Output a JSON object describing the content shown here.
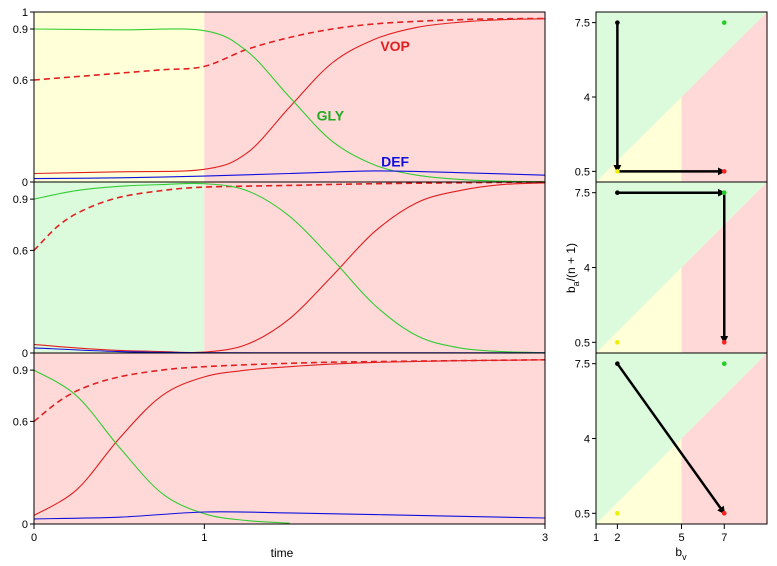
{
  "chart_data": {
    "type": "line",
    "xlabel": "time",
    "x_ticks": [
      "0",
      "1",
      "3"
    ],
    "y_ticks_left": [
      "0",
      "0.6",
      "0.9",
      "1"
    ],
    "xlim": [
      0,
      3
    ],
    "ylim": [
      0,
      1
    ],
    "series_labels": [
      {
        "name": "VOP",
        "color": "#e02020",
        "x": 2.12,
        "y": 0.8
      },
      {
        "name": "GLY",
        "color": "#22aa22",
        "x": 1.74,
        "y": 0.39
      },
      {
        "name": "DEF",
        "color": "#1010dd",
        "x": 2.12,
        "y": 0.12
      }
    ],
    "colors": {
      "yellow_region": "#ffffd8",
      "green_region": "#dcfadc",
      "red_region": "#ffd8d8",
      "vop": "#e02020",
      "gly": "#33cc33",
      "def": "#1010dd"
    },
    "panels": [
      {
        "regions": [
          {
            "from": 0,
            "to": 1,
            "color": "yellow"
          },
          {
            "from": 1,
            "to": 3,
            "color": "red"
          }
        ],
        "series": [
          {
            "name": "VOP",
            "color": "#e02020",
            "style": "solid",
            "x": [
              0,
              0.5,
              1,
              1.25,
              1.5,
              1.75,
              2,
              2.25,
              2.5,
              2.75,
              3
            ],
            "y": [
              0.05,
              0.06,
              0.075,
              0.17,
              0.44,
              0.7,
              0.84,
              0.91,
              0.94,
              0.955,
              0.96
            ]
          },
          {
            "name": "VOP_mean",
            "color": "#e02020",
            "style": "dashed",
            "x": [
              0,
              0.25,
              0.5,
              0.75,
              1,
              1.25,
              1.5,
              1.75,
              2,
              2.25,
              2.5,
              2.75,
              3
            ],
            "y": [
              0.6,
              0.62,
              0.64,
              0.66,
              0.68,
              0.78,
              0.85,
              0.9,
              0.93,
              0.945,
              0.955,
              0.96,
              0.962
            ]
          },
          {
            "name": "GLY",
            "color": "#33cc33",
            "style": "solid",
            "x": [
              0,
              0.5,
              1,
              1.25,
              1.5,
              1.75,
              2,
              2.25,
              2.5,
              2.75,
              3
            ],
            "y": [
              0.9,
              0.895,
              0.89,
              0.77,
              0.5,
              0.24,
              0.1,
              0.04,
              0.015,
              0.005,
              0.002
            ]
          },
          {
            "name": "DEF",
            "color": "#1010dd",
            "style": "solid",
            "x": [
              0,
              0.5,
              1,
              1.5,
              2,
              2.5,
              3
            ],
            "y": [
              0.02,
              0.025,
              0.035,
              0.05,
              0.065,
              0.055,
              0.04
            ]
          }
        ]
      },
      {
        "regions": [
          {
            "from": 0,
            "to": 1,
            "color": "green"
          },
          {
            "from": 1,
            "to": 3,
            "color": "red"
          }
        ],
        "series": [
          {
            "name": "VOP",
            "color": "#e02020",
            "style": "solid",
            "x": [
              0,
              0.25,
              0.5,
              0.75,
              1,
              1.25,
              1.5,
              1.75,
              2,
              2.25,
              2.5,
              2.75,
              3
            ],
            "y": [
              0.05,
              0.03,
              0.015,
              0.008,
              0.005,
              0.05,
              0.2,
              0.45,
              0.71,
              0.88,
              0.95,
              0.985,
              0.995
            ]
          },
          {
            "name": "VOP_mean",
            "color": "#e02020",
            "style": "dashed",
            "x": [
              0,
              0.15,
              0.3,
              0.5,
              0.75,
              1,
              1.5,
              2,
              3
            ],
            "y": [
              0.6,
              0.75,
              0.84,
              0.91,
              0.95,
              0.97,
              0.98,
              0.99,
              1.0
            ]
          },
          {
            "name": "GLY",
            "color": "#33cc33",
            "style": "solid",
            "x": [
              0,
              0.25,
              0.5,
              0.75,
              1,
              1.25,
              1.5,
              1.75,
              2,
              2.25,
              2.5,
              2.75,
              3
            ],
            "y": [
              0.9,
              0.95,
              0.975,
              0.985,
              0.99,
              0.95,
              0.8,
              0.55,
              0.28,
              0.1,
              0.03,
              0.008,
              0.002
            ]
          },
          {
            "name": "DEF",
            "color": "#1010dd",
            "style": "solid",
            "x": [
              0,
              0.5,
              1,
              2,
              3
            ],
            "y": [
              0.03,
              0.008,
              0.002,
              0.001,
              0.001
            ]
          }
        ]
      },
      {
        "regions": [
          {
            "from": 0,
            "to": 3,
            "color": "red"
          }
        ],
        "series": [
          {
            "name": "VOP",
            "color": "#e02020",
            "style": "solid",
            "x": [
              0,
              0.25,
              0.5,
              0.75,
              1,
              1.25,
              1.5,
              1.75,
              2,
              2.5,
              3
            ],
            "y": [
              0.05,
              0.2,
              0.5,
              0.75,
              0.86,
              0.9,
              0.92,
              0.935,
              0.945,
              0.955,
              0.96
            ]
          },
          {
            "name": "VOP_mean",
            "color": "#e02020",
            "style": "dashed",
            "x": [
              0,
              0.15,
              0.3,
              0.5,
              0.75,
              1,
              1.5,
              2,
              3
            ],
            "y": [
              0.6,
              0.72,
              0.8,
              0.86,
              0.9,
              0.92,
              0.94,
              0.95,
              0.96
            ]
          },
          {
            "name": "GLY",
            "color": "#33cc33",
            "style": "solid",
            "x": [
              0,
              0.25,
              0.5,
              0.75,
              1,
              1.25,
              1.5
            ],
            "y": [
              0.9,
              0.75,
              0.45,
              0.18,
              0.06,
              0.02,
              0.005
            ]
          },
          {
            "name": "DEF",
            "color": "#1010dd",
            "style": "solid",
            "x": [
              0,
              0.5,
              1,
              1.5,
              2,
              2.5,
              3
            ],
            "y": [
              0.03,
              0.04,
              0.07,
              0.065,
              0.055,
              0.045,
              0.035
            ]
          }
        ]
      }
    ],
    "phase_panels": {
      "xlabel": "b",
      "xlabel_sub": "v",
      "ylabel": "b",
      "ylabel_sub": "a",
      "ylabel_suffix": "/(n + 1)",
      "x_ticks": [
        "1",
        "2",
        "5",
        "7"
      ],
      "x_tick_values": [
        1,
        2,
        5,
        7
      ],
      "y_ticks": [
        "0.5",
        "4",
        "7.5"
      ],
      "y_tick_values": [
        0.5,
        4,
        7.5
      ],
      "xlim": [
        1,
        9
      ],
      "ylim": [
        0,
        8
      ],
      "panels": [
        {
          "points": [
            {
              "x": 2,
              "y": 7.5,
              "color": "#000000"
            },
            {
              "x": 7,
              "y": 7.5,
              "color": "#22cc22"
            },
            {
              "x": 2,
              "y": 0.5,
              "color": "#eeee00"
            },
            {
              "x": 7,
              "y": 0.5,
              "color": "#ff2020"
            }
          ],
          "arrows": [
            {
              "from": [
                2,
                7.5
              ],
              "to": [
                2,
                0.5
              ]
            },
            {
              "from": [
                2,
                0.5
              ],
              "to": [
                7,
                0.5
              ]
            }
          ]
        },
        {
          "points": [
            {
              "x": 2,
              "y": 7.5,
              "color": "#000000"
            },
            {
              "x": 7,
              "y": 7.5,
              "color": "#22cc22"
            },
            {
              "x": 2,
              "y": 0.5,
              "color": "#eeee00"
            },
            {
              "x": 7,
              "y": 0.5,
              "color": "#ff2020"
            }
          ],
          "arrows": [
            {
              "from": [
                2,
                7.5
              ],
              "to": [
                7,
                7.5
              ]
            },
            {
              "from": [
                7,
                7.5
              ],
              "to": [
                7,
                0.5
              ]
            }
          ]
        },
        {
          "points": [
            {
              "x": 2,
              "y": 7.5,
              "color": "#000000"
            },
            {
              "x": 7,
              "y": 7.5,
              "color": "#22cc22"
            },
            {
              "x": 2,
              "y": 0.5,
              "color": "#eeee00"
            },
            {
              "x": 7,
              "y": 0.5,
              "color": "#ff2020"
            }
          ],
          "arrows": [
            {
              "from": [
                2,
                7.5
              ],
              "to": [
                7,
                0.5
              ]
            }
          ]
        }
      ]
    }
  }
}
